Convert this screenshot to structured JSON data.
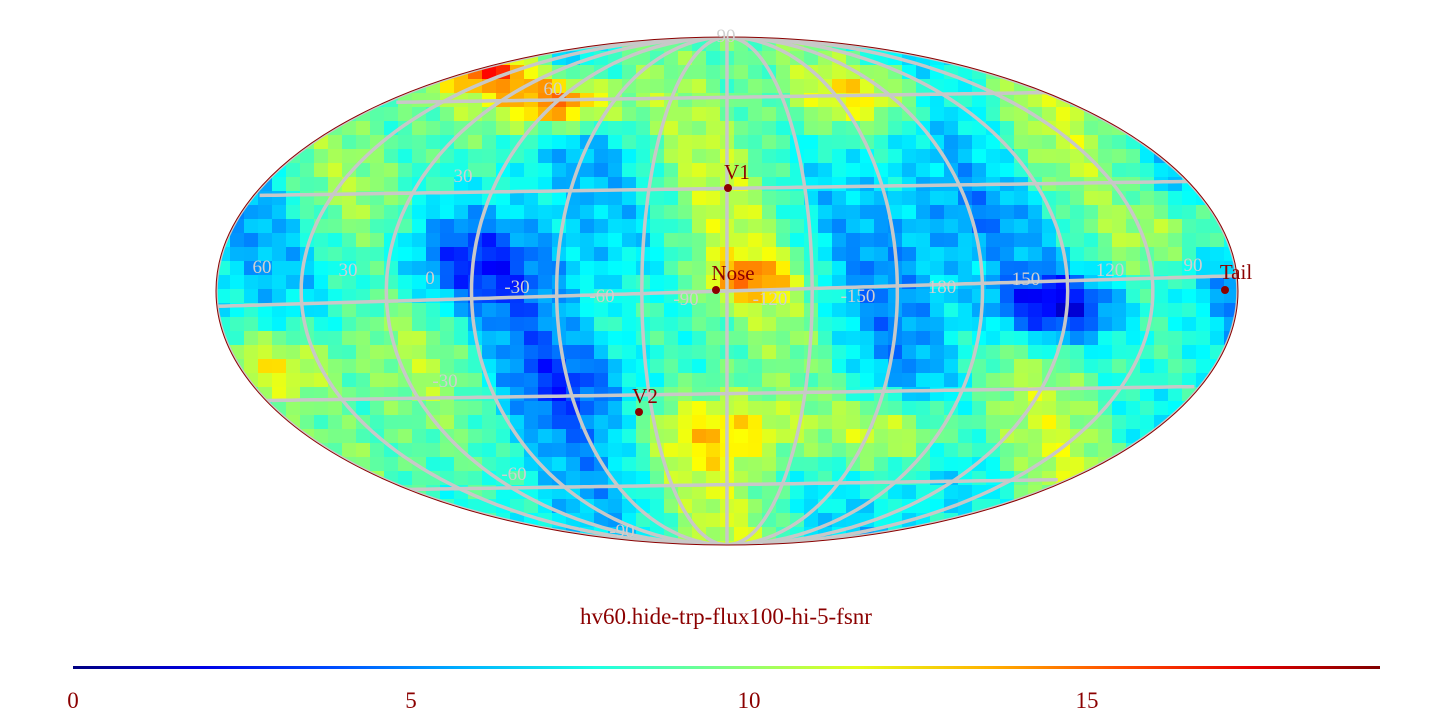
{
  "title": "hv60.hide-trp-flux100-hi-5-fsnr",
  "colorbar": {
    "min": 0,
    "max": 19.5,
    "ticks": [
      "0",
      "5",
      "10",
      "15"
    ],
    "colormap": "jet"
  },
  "projection": "mollweide",
  "grid_labels": {
    "latitude": [
      "90",
      "60",
      "30",
      "-30",
      "-60",
      "-90"
    ],
    "longitude": [
      "60",
      "30",
      "0",
      "-30",
      "-60",
      "-90",
      "-120",
      "-150",
      "180",
      "150",
      "120",
      "90"
    ]
  },
  "markers": [
    {
      "name": "V1",
      "lon": 0.0,
      "lat": 34.2
    },
    {
      "name": "Nose",
      "lon": -2.3,
      "lat": 0.5
    },
    {
      "name": "V2",
      "lon": -17.0,
      "lat": -33.3
    },
    {
      "name": "Tail",
      "lon": 177.7,
      "lat": 0.5
    }
  ],
  "colors": {
    "grid": "#c8c8c8",
    "marker": "#8b0000",
    "label_text": "#8b0000"
  }
}
